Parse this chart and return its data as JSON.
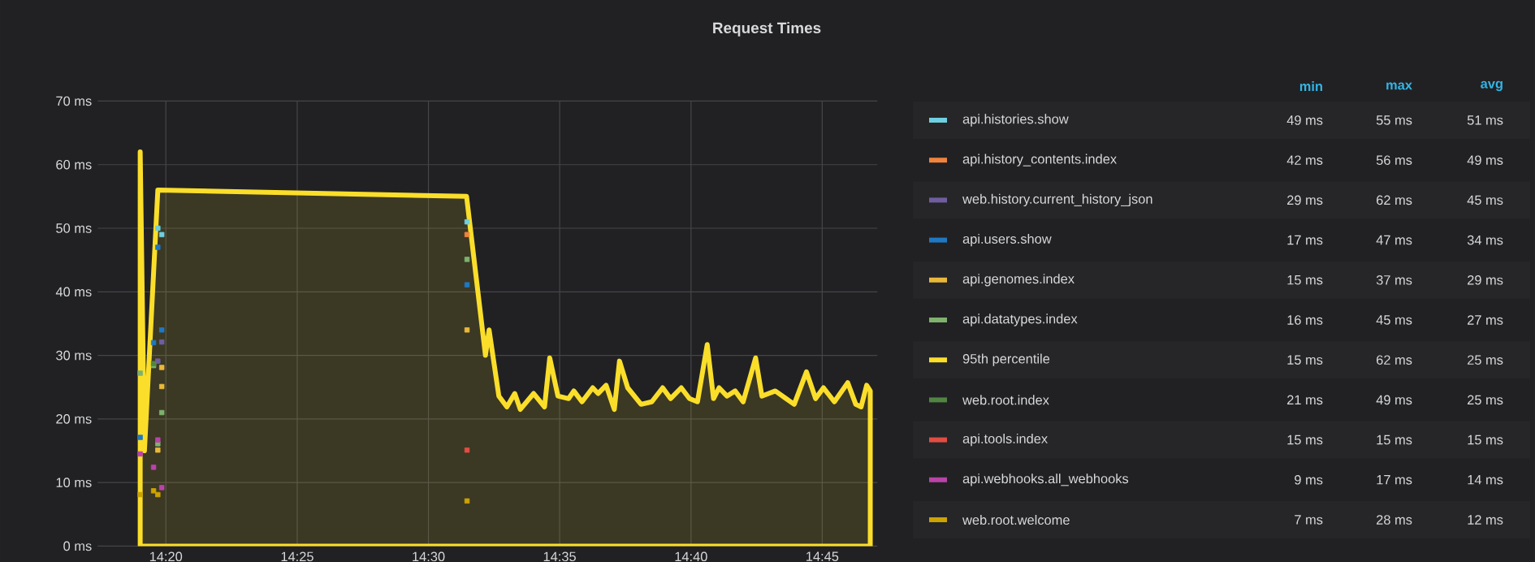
{
  "chart_data": {
    "type": "scatter",
    "title": "Request Times",
    "marker": "square",
    "grid": true,
    "legend": "right",
    "xlim": [
      14.29,
      14.785
    ],
    "ylim": [
      0,
      70
    ],
    "xticks": [
      {
        "value": 14.3333,
        "label": "14:20"
      },
      {
        "value": 14.4167,
        "label": "14:25"
      },
      {
        "value": 14.5,
        "label": "14:30"
      },
      {
        "value": 14.5833,
        "label": "14:35"
      },
      {
        "value": 14.6667,
        "label": "14:40"
      },
      {
        "value": 14.75,
        "label": "14:45"
      }
    ],
    "yticks": [
      {
        "value": 0,
        "label": "0 ms"
      },
      {
        "value": 10,
        "label": "10 ms"
      },
      {
        "value": 20,
        "label": "20 ms"
      },
      {
        "value": 30,
        "label": "30 ms"
      },
      {
        "value": 40,
        "label": "40 ms"
      },
      {
        "value": 50,
        "label": "50 ms"
      },
      {
        "value": 60,
        "label": "60 ms"
      },
      {
        "value": 70,
        "label": "70 ms"
      }
    ],
    "annotations": [
      "min",
      "max",
      "avg",
      "49 ms",
      "55 ms",
      "51 ms",
      "42 ms",
      "56 ms",
      "49 ms",
      "29 ms",
      "62 ms",
      "45 ms",
      "17 ms",
      "47 ms",
      "34 ms",
      "15 ms",
      "37 ms",
      "29 ms",
      "16 ms",
      "45 ms",
      "27 ms",
      "15 ms",
      "62 ms",
      "25 ms",
      "21 ms",
      "49 ms",
      "25 ms",
      "15 ms",
      "15 ms",
      "15 ms",
      "9 ms",
      "17 ms",
      "14 ms",
      "7 ms",
      "28 ms",
      "12 ms"
    ],
    "series": [
      {
        "name": "api.histories.show",
        "color": "#6ed0e0",
        "x": [
          14.3282,
          14.3307,
          14.5245
        ],
        "values": [
          50,
          49,
          51
        ]
      },
      {
        "name": "api.history_contents.index",
        "color": "#ef843c",
        "x": [
          14.5245
        ],
        "values": [
          49
        ]
      },
      {
        "name": "web.history.current_history_json",
        "color": "#705da0",
        "x": [
          14.3307,
          14.3282
        ],
        "values": [
          32.1,
          29.1
        ]
      },
      {
        "name": "api.users.show",
        "color": "#1f78c1",
        "x": [
          14.3282,
          14.3307,
          14.3255,
          14.317,
          14.5245
        ],
        "values": [
          47,
          34,
          32,
          17.1,
          41.1
        ]
      },
      {
        "name": "api.genomes.index",
        "color": "#eab839",
        "x": [
          14.3307,
          14.3307,
          14.3282,
          14.5245
        ],
        "values": [
          28.1,
          25.1,
          15.1,
          34
        ]
      },
      {
        "name": "api.datatypes.index",
        "color": "#7eb26d",
        "x": [
          14.5245,
          14.3255,
          14.3307,
          14.3282,
          14.317
        ],
        "values": [
          45.1,
          28.4,
          21,
          16.1,
          27.2
        ]
      },
      {
        "name": "95th percentile",
        "color": "#fade2a",
        "type": "area",
        "marker": "none",
        "x": [
          14.317,
          14.3197,
          14.3282,
          14.5242,
          14.5362,
          14.5385,
          14.5447,
          14.5498,
          14.5548,
          14.5583,
          14.5668,
          14.5737,
          14.577,
          14.5822,
          14.589,
          14.5923,
          14.5975,
          14.6043,
          14.6077,
          14.6128,
          14.618,
          14.6213,
          14.6265,
          14.635,
          14.6418,
          14.6487,
          14.6537,
          14.6605,
          14.6657,
          14.6708,
          14.677,
          14.681,
          14.6845,
          14.6895,
          14.6947,
          14.6998,
          14.7077,
          14.7117,
          14.7202,
          14.727,
          14.7322,
          14.74,
          14.7458,
          14.7508,
          14.7577,
          14.7662,
          14.7713,
          14.7747,
          14.7782,
          14.7805
        ],
        "values": [
          62,
          15,
          56,
          55,
          30,
          34,
          23.6,
          21.9,
          24,
          21.5,
          24,
          21.9,
          29.6,
          23.6,
          23.2,
          24.4,
          22.7,
          24.9,
          24,
          25.3,
          21.5,
          29.1,
          24.9,
          22.3,
          22.7,
          24.9,
          23.2,
          24.9,
          23.2,
          22.7,
          31.7,
          23.2,
          24.9,
          23.6,
          24.4,
          22.7,
          29.6,
          23.6,
          24.4,
          23.2,
          22.3,
          27.4,
          23.2,
          24.9,
          22.7,
          25.7,
          22.3,
          21.9,
          25.3,
          24.4
        ]
      },
      {
        "name": "web.root.index",
        "color": "#508642",
        "x": [
          14.3255
        ],
        "values": [
          28.7
        ]
      },
      {
        "name": "api.tools.index",
        "color": "#e24d42",
        "x": [
          14.5245
        ],
        "values": [
          15.1
        ]
      },
      {
        "name": "api.webhooks.all_webhooks",
        "color": "#ba43a9",
        "x": [
          14.3282,
          14.317,
          14.3255,
          14.3307
        ],
        "values": [
          16.7,
          14.5,
          12.4,
          9.2
        ]
      },
      {
        "name": "web.root.welcome",
        "color": "#cca300",
        "x": [
          14.317,
          14.3255,
          14.3282,
          14.5245
        ],
        "values": [
          8.1,
          8.7,
          8.1,
          7.1
        ]
      }
    ]
  }
}
